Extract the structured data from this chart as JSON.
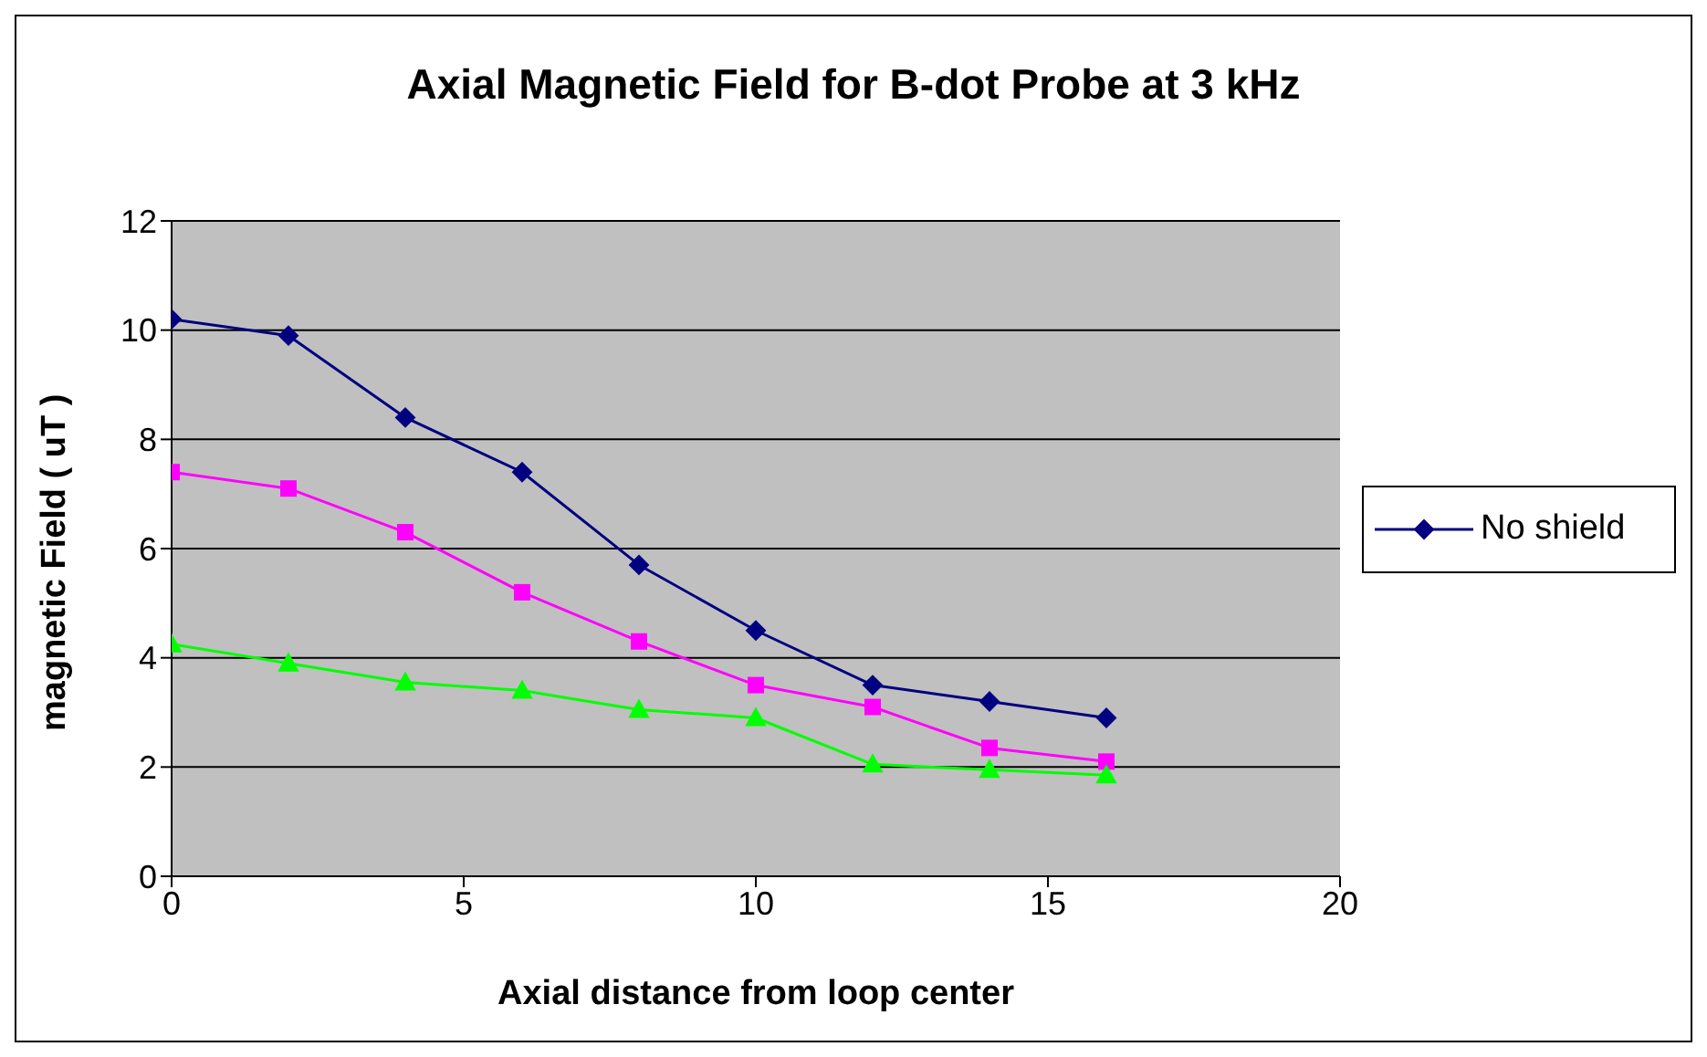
{
  "chart_data": {
    "type": "line",
    "title": "Axial Magnetic Field for B-dot Probe at 3 kHz",
    "xlabel": "Axial distance from loop center",
    "ylabel": "magnetic Field ( uT )",
    "x": [
      0,
      2,
      4,
      6,
      8,
      10,
      12,
      14,
      16
    ],
    "series": [
      {
        "name": "No shield",
        "color": "#000080",
        "marker": "diamond",
        "values": [
          10.2,
          9.9,
          8.4,
          7.4,
          5.7,
          4.5,
          3.5,
          3.2,
          2.9
        ]
      },
      {
        "color": "#ff00ff",
        "marker": "square",
        "values": [
          7.4,
          7.1,
          6.3,
          5.2,
          4.3,
          3.5,
          3.1,
          2.35,
          2.1
        ]
      },
      {
        "color": "#00ff00",
        "marker": "triangle",
        "values": [
          4.25,
          3.9,
          3.55,
          3.4,
          3.05,
          2.9,
          2.05,
          1.95,
          1.85
        ]
      }
    ],
    "xlim": [
      0,
      20
    ],
    "xticks": [
      0,
      5,
      10,
      15,
      20
    ],
    "ylim": [
      0,
      12
    ],
    "yticks": [
      0,
      2,
      4,
      6,
      8,
      10,
      12
    ],
    "grid": "y",
    "legend": "right"
  }
}
